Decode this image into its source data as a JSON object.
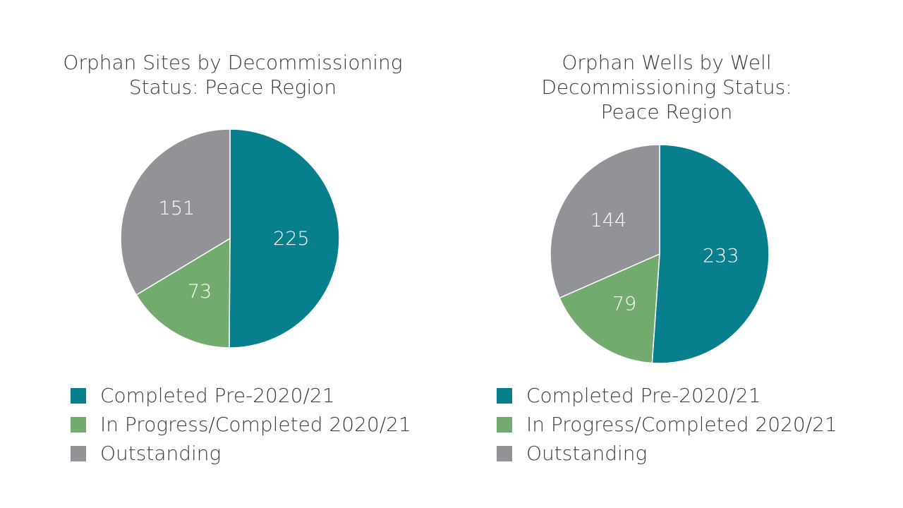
{
  "colors": {
    "completed": "#087f8c",
    "in_progress": "#72ab6d",
    "outstanding": "#929396"
  },
  "chart_data": [
    {
      "type": "pie",
      "title": "Orphan Sites by Decommissioning Status: Peace Region",
      "title_lines": [
        "Orphan Sites by Decommissioning",
        "Status: Peace Region"
      ],
      "slices": [
        {
          "label": "Completed Pre-2020/21",
          "value": 225,
          "color": "#087f8c"
        },
        {
          "label": "In Progress/Completed 2020/21",
          "value": 73,
          "color": "#72ab6d"
        },
        {
          "label": "Outstanding",
          "value": 151,
          "color": "#929396"
        }
      ],
      "legend_position": "bottom"
    },
    {
      "type": "pie",
      "title": "Orphan Wells by Well Decommissioning Status: Peace Region",
      "title_lines": [
        "Orphan Wells by Well",
        "Decommissioning Status:",
        "Peace Region"
      ],
      "slices": [
        {
          "label": "Completed Pre-2020/21",
          "value": 233,
          "color": "#087f8c"
        },
        {
          "label": "In Progress/Completed 2020/21",
          "value": 79,
          "color": "#72ab6d"
        },
        {
          "label": "Outstanding",
          "value": 144,
          "color": "#929396"
        }
      ],
      "legend_position": "bottom"
    }
  ]
}
